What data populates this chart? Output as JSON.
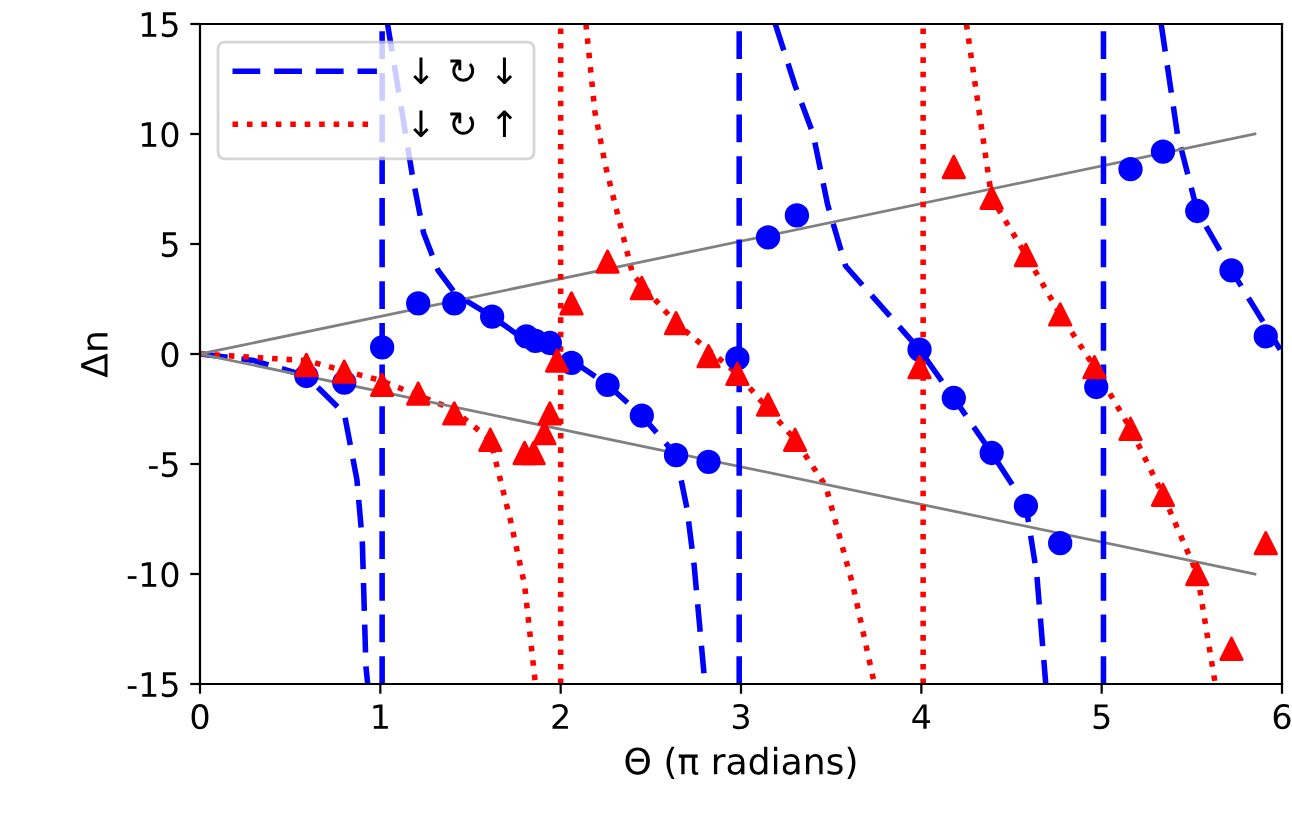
{
  "chart_data": {
    "type": "line",
    "xlabel": "Θ (π radians)",
    "ylabel": "Δn",
    "xlim": [
      0,
      6
    ],
    "ylim": [
      -15,
      15
    ],
    "xticks": [
      0,
      1,
      2,
      3,
      4,
      5,
      6
    ],
    "yticks": [
      -15,
      -10,
      -5,
      0,
      5,
      10,
      15
    ],
    "legend": "top left",
    "ref_lines": [
      {
        "axis": "x",
        "value": 1.01,
        "color": "#0000ff",
        "line_style": "dashed"
      },
      {
        "axis": "x",
        "value": 2.0,
        "color": "#ff0000",
        "line_style": "dotted"
      },
      {
        "axis": "x",
        "value": 2.99,
        "color": "#0000ff",
        "line_style": "dashed"
      },
      {
        "axis": "x",
        "value": 4.01,
        "color": "#ff0000",
        "line_style": "dotted"
      },
      {
        "axis": "x",
        "value": 5.01,
        "color": "#0000ff",
        "line_style": "dashed"
      }
    ],
    "series": [
      {
        "name": "↓ ↻ ↓",
        "color": "#0000ff",
        "line_style": "dashed",
        "marker": "none",
        "x": [
          0,
          0.3,
          0.59,
          0.8,
          0.87,
          0.9,
          0.92,
          0.93,
          null,
          1.04,
          1.18,
          1.24,
          1.32,
          1.42,
          1.62,
          1.81,
          2.08,
          2.26,
          2.45,
          2.64,
          2.7,
          2.74,
          2.8,
          null,
          3.19,
          3.3,
          3.4,
          3.48,
          3.58,
          3.99,
          4.18,
          4.39,
          4.58,
          4.64,
          4.69,
          null,
          5.33,
          5.42,
          5.53,
          5.72,
          5.99
        ],
        "values": [
          0,
          -0.3,
          -1.0,
          -2.7,
          -5.7,
          -8.5,
          -14.2,
          -15,
          null,
          15,
          8,
          5.5,
          3.8,
          2.7,
          1.7,
          0.6,
          -0.4,
          -1.4,
          -2.8,
          -4.6,
          -7,
          -9.6,
          -15,
          null,
          15,
          12.2,
          10,
          6.8,
          4,
          0.2,
          -2.0,
          -4.5,
          -6.9,
          -10,
          -15,
          null,
          15,
          10,
          6.5,
          3.8,
          0.2
        ]
      },
      {
        "name": "↓ ↻ ↑",
        "color": "#ff0000",
        "line_style": "dotted",
        "marker": "none",
        "x": [
          0,
          0.59,
          1.0,
          1.4,
          1.61,
          1.72,
          1.8,
          1.86,
          null,
          2.14,
          2.19,
          2.25,
          2.4,
          2.64,
          2.98,
          3.3,
          3.47,
          3.62,
          3.74,
          null,
          4.25,
          4.39,
          4.58,
          4.77,
          4.96,
          5.16,
          5.34,
          5.53,
          5.63
        ],
        "values": [
          0,
          -0.3,
          -1.2,
          -2.5,
          -3.9,
          -7.5,
          -10.5,
          -15,
          null,
          15,
          11,
          8.5,
          3.6,
          1.4,
          -0.9,
          -3.9,
          -6,
          -10.5,
          -15,
          null,
          15,
          7.1,
          4.5,
          1.8,
          -0.6,
          -3.4,
          -6.4,
          -10,
          -15
        ]
      },
      {
        "type": "scatter",
        "color": "#0000ff",
        "marker": "circle",
        "x": [
          0.59,
          0.8,
          1.01,
          1.21,
          1.41,
          1.62,
          1.81,
          1.86,
          1.94,
          2.06,
          2.26,
          2.45,
          2.64,
          2.82,
          2.98,
          3.15,
          3.31,
          3.99,
          4.18,
          4.39,
          4.58,
          4.77,
          4.97,
          5.16,
          5.34,
          5.53,
          5.72,
          5.91
        ],
        "values": [
          -1.0,
          -1.3,
          0.3,
          2.3,
          2.3,
          1.7,
          0.8,
          0.6,
          0.5,
          -0.4,
          -1.4,
          -2.8,
          -4.6,
          -4.9,
          -0.2,
          5.3,
          6.3,
          0.2,
          -2.0,
          -4.5,
          -6.9,
          -8.6,
          -1.5,
          8.4,
          9.2,
          6.5,
          3.8,
          0.8
        ]
      },
      {
        "type": "scatter",
        "color": "#ff0000",
        "marker": "triangle",
        "x": [
          0.59,
          0.8,
          1.01,
          1.21,
          1.41,
          1.61,
          1.8,
          1.85,
          1.91,
          1.94,
          1.98,
          2.06,
          2.26,
          2.45,
          2.64,
          2.82,
          2.98,
          3.15,
          3.3,
          3.99,
          4.18,
          4.39,
          4.58,
          4.77,
          4.96,
          5.16,
          5.34,
          5.53,
          5.72,
          5.91
        ],
        "values": [
          -0.5,
          -0.8,
          -1.4,
          -1.8,
          -2.7,
          -3.9,
          -4.5,
          -4.5,
          -3.6,
          -2.7,
          -0.3,
          2.3,
          4.2,
          3.0,
          1.4,
          -0.1,
          -0.9,
          -2.3,
          -3.9,
          -0.6,
          8.5,
          7.1,
          4.5,
          1.8,
          -0.6,
          -3.4,
          -6.4,
          -10.0,
          -13.4,
          -8.6
        ]
      },
      {
        "color": "#808080",
        "line_style": "solid",
        "marker": "none",
        "x": [
          0,
          5.85
        ],
        "values": [
          0,
          10
        ]
      },
      {
        "color": "#808080",
        "line_style": "solid",
        "marker": "none",
        "x": [
          0,
          5.85
        ],
        "values": [
          0,
          -10
        ]
      }
    ]
  }
}
